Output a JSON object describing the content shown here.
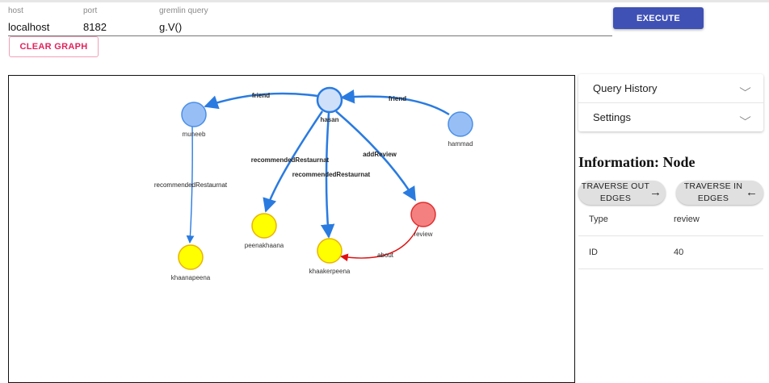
{
  "query_bar": {
    "host": {
      "label": "host",
      "value": "localhost"
    },
    "port": {
      "label": "port",
      "value": "8182"
    },
    "gremlin_query": {
      "label": "gremlin query",
      "value": "g.V()"
    },
    "execute_label": "EXECUTE",
    "clear_label": "CLEAR GRAPH"
  },
  "graph": {
    "nodes": [
      {
        "id": "hasan",
        "label": "hasan",
        "color": "#cfe0fa",
        "stroke": "#2a7be0",
        "selected": true
      },
      {
        "id": "muneeb",
        "label": "muneeb",
        "color": "#97bff5",
        "stroke": "#4b8fe8"
      },
      {
        "id": "hammad",
        "label": "hammad",
        "color": "#97bff5",
        "stroke": "#4b8fe8"
      },
      {
        "id": "peenakhaana",
        "label": "peenakhaana",
        "color": "#ffff00",
        "stroke": "#e8b400"
      },
      {
        "id": "khaakerpeena",
        "label": "khaakerpeena",
        "color": "#ffff00",
        "stroke": "#e8b400"
      },
      {
        "id": "khaanapeena",
        "label": "khaanapeena",
        "color": "#ffff00",
        "stroke": "#e8b400"
      },
      {
        "id": "review",
        "label": "review",
        "color": "#f48080",
        "stroke": "#e03030"
      }
    ],
    "edges": [
      {
        "label": "friend",
        "bold": true
      },
      {
        "label": "friend",
        "bold": true
      },
      {
        "label": "recommendedRestaurnat",
        "bold": true
      },
      {
        "label": "recommendedRestaurnat",
        "bold": true
      },
      {
        "label": "addReview",
        "bold": true
      },
      {
        "label": "recommendedRestaurnat",
        "bold": false
      },
      {
        "label": "about",
        "bold": false
      }
    ],
    "edge_colors": {
      "default": "#2a7be0",
      "about": "#e01010"
    }
  },
  "sidebar": {
    "query_history_label": "Query History",
    "settings_label": "Settings",
    "info_title": "Information: Node",
    "traverse_out": {
      "line1": "TRAVERSE OUT",
      "line2": "EDGES",
      "arrow": "→"
    },
    "traverse_in": {
      "line1": "TRAVERSE IN",
      "line2": "EDGES",
      "arrow": "←"
    },
    "rows": [
      {
        "key": "Type",
        "value": "review"
      },
      {
        "key": "ID",
        "value": "40"
      }
    ]
  }
}
